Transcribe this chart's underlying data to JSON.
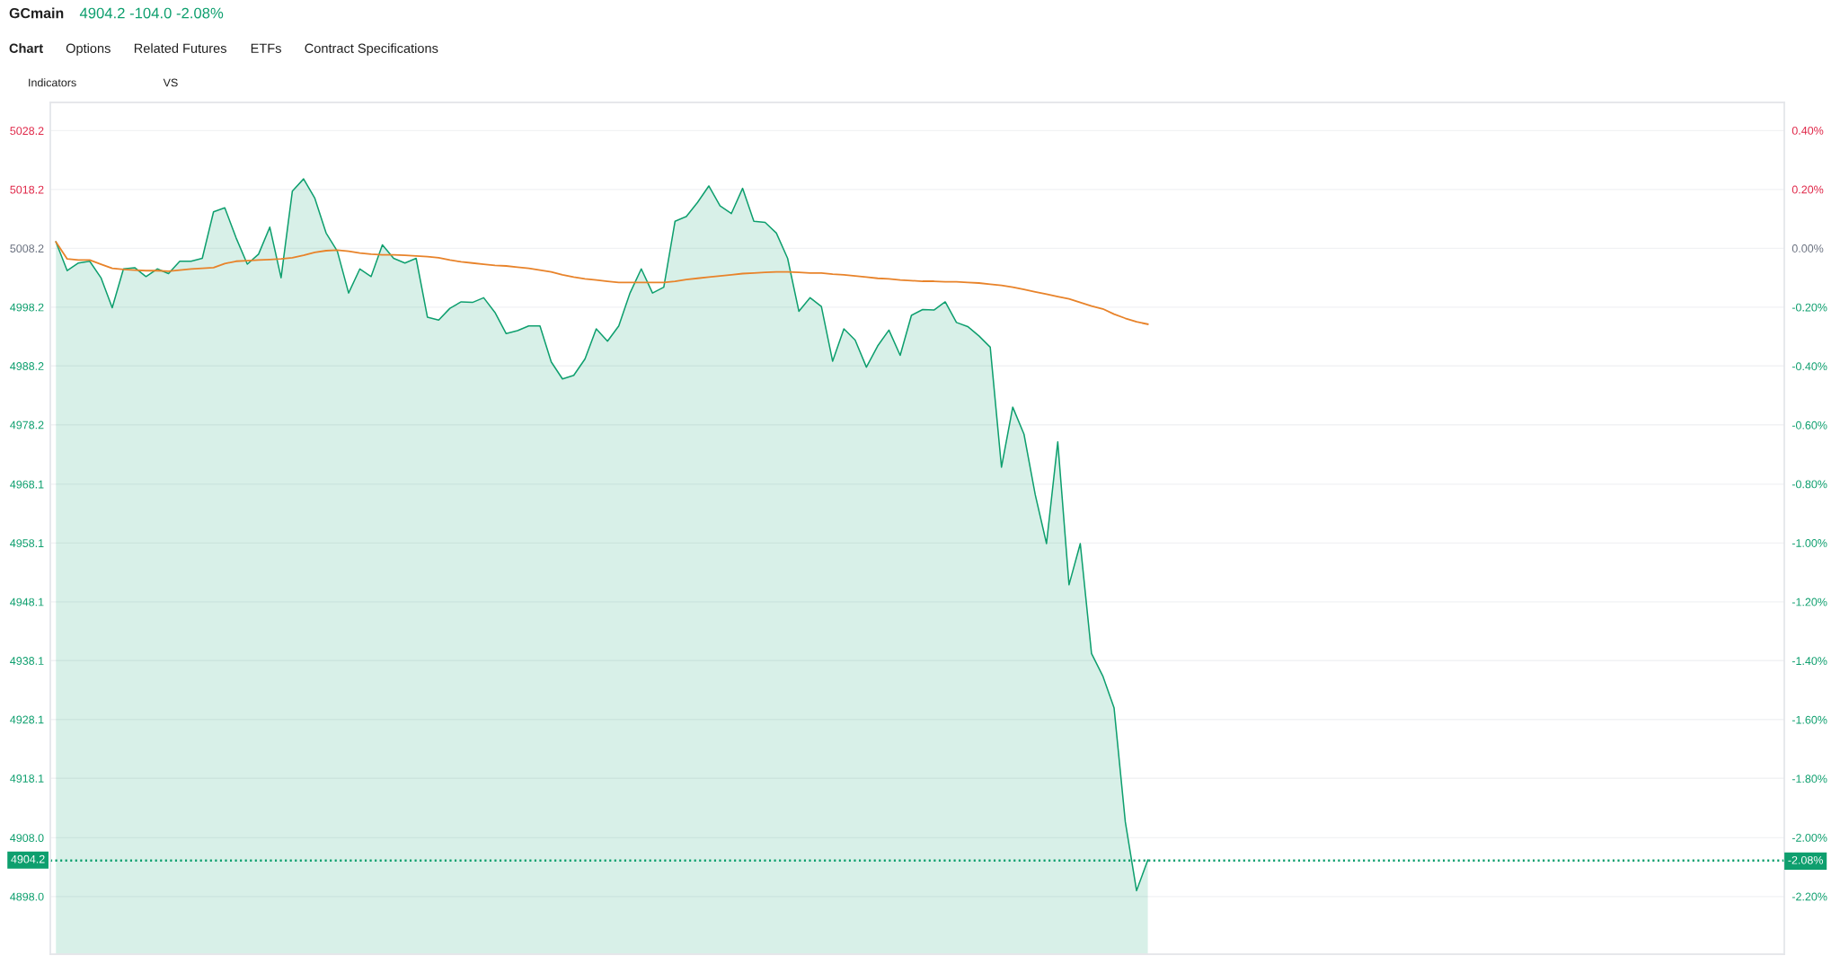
{
  "chart_data": {
    "type": "area",
    "title": "GCmain",
    "subtitle": "4904.2 -104.0 -2.08%",
    "annotations": [
      "Chart",
      "Options",
      "Related Futures",
      "ETFs",
      "Contract Specifications",
      "Indicators",
      "VS"
    ],
    "categories": [
      null,
      null,
      null,
      null,
      null,
      null,
      null,
      null,
      null,
      null,
      null,
      null,
      null,
      null,
      null,
      null,
      null,
      null,
      null,
      null,
      null,
      null,
      null,
      null,
      null,
      null,
      null,
      null,
      null,
      null,
      null,
      null,
      null,
      null,
      null,
      null,
      null,
      null,
      null,
      null,
      null,
      null,
      null,
      null,
      null,
      null,
      null,
      null,
      null,
      null,
      null,
      null,
      null,
      null,
      null,
      null,
      null,
      null,
      null,
      null,
      null,
      null,
      null,
      null,
      null,
      null,
      null,
      null,
      null,
      null,
      null,
      null,
      null,
      null,
      null,
      null,
      null,
      null,
      null,
      null,
      null,
      null,
      null,
      null,
      null,
      null,
      null,
      null,
      null,
      null,
      null,
      null,
      null,
      null,
      null,
      null,
      null,
      null
    ],
    "series": [
      {
        "color": "#0e9f6e",
        "values": [
          5009.3,
          5004.4,
          5005.7,
          5006.0,
          5003.2,
          4998.1,
          5004.7,
          5004.9,
          5003.4,
          5004.7,
          5003.9,
          5006.0,
          5006.0,
          5006.5,
          5014.4,
          5015.1,
          5010.0,
          5005.5,
          5007.2,
          5011.8,
          5003.2,
          5017.9,
          5020.0,
          5016.7,
          5010.8,
          5007.7,
          5000.6,
          5004.7,
          5003.4,
          5008.8,
          5006.5,
          5005.7,
          5006.5,
          4996.5,
          4996.0,
          4998.0,
          4999.1,
          4999.0,
          4999.8,
          4997.3,
          4993.7,
          4994.2,
          4995.0,
          4995.0,
          4988.9,
          4986.0,
          4986.6,
          4989.4,
          4994.5,
          4992.4,
          4995.0,
          5000.6,
          5004.7,
          5000.6,
          5001.6,
          5012.8,
          5013.6,
          5016.0,
          5018.8,
          5015.4,
          5014.1,
          5018.4,
          5012.8,
          5012.6,
          5010.8,
          5006.5,
          4997.5,
          4999.8,
          4998.3,
          4989.0,
          4994.5,
          4992.6,
          4988.0,
          4991.6,
          4994.3,
          4990.0,
          4996.8,
          4997.8,
          4997.7,
          4999.1,
          4995.6,
          4994.9,
          4993.3,
          4991.4,
          4971.0,
          4981.2,
          4976.6,
          4966.3,
          4958.0,
          4975.3,
          4951.0,
          4958.0,
          4939.3,
          4935.5,
          4930.1,
          4910.7,
          4899.0,
          4904.2
        ]
      },
      {
        "type": "line",
        "color": "#e8832a",
        "values": [
          5009.3,
          5006.4,
          5006.2,
          5006.2,
          5005.5,
          5004.8,
          5004.6,
          5004.5,
          5004.4,
          5004.4,
          5004.3,
          5004.5,
          5004.7,
          5004.8,
          5004.9,
          5005.6,
          5006.0,
          5006.1,
          5006.2,
          5006.3,
          5006.4,
          5006.6,
          5007.0,
          5007.5,
          5007.8,
          5007.9,
          5007.7,
          5007.4,
          5007.2,
          5007.1,
          5007.1,
          5007.0,
          5006.9,
          5006.8,
          5006.6,
          5006.2,
          5005.9,
          5005.7,
          5005.5,
          5005.3,
          5005.2,
          5005.0,
          5004.8,
          5004.5,
          5004.2,
          5003.7,
          5003.3,
          5003.0,
          5002.8,
          5002.6,
          5002.4,
          5002.4,
          5002.4,
          5002.4,
          5002.4,
          5002.6,
          5002.9,
          5003.1,
          5003.3,
          5003.5,
          5003.7,
          5003.9,
          5004.0,
          5004.1,
          5004.2,
          5004.2,
          5004.1,
          5004.0,
          5004.0,
          5003.8,
          5003.7,
          5003.5,
          5003.3,
          5003.1,
          5003.0,
          5002.8,
          5002.7,
          5002.6,
          5002.6,
          5002.5,
          5002.5,
          5002.4,
          5002.3,
          5002.1,
          5001.9,
          5001.6,
          5001.2,
          5000.8,
          5000.4,
          5000.0,
          4999.6,
          4999.0,
          4998.4,
          4997.9,
          4997.0,
          4996.3,
          4995.7,
          4995.3
        ]
      }
    ],
    "ylim": [
      4888.2,
      5033.0
    ],
    "yticks": [
      5028.2,
      5018.2,
      5008.2,
      4998.2,
      4988.2,
      4978.2,
      4968.1,
      4958.1,
      4948.1,
      4938.1,
      4928.1,
      4918.1,
      {
        "value": 4908.0,
        "label": "4908.0"
      },
      {
        "value": 4898.0,
        "label": "4898.0"
      }
    ],
    "y2lim": [
      -2.396,
      0.495
    ],
    "y2ticks": [
      {
        "value": 0.4,
        "label": "0.40%"
      },
      {
        "value": 0.2,
        "label": "0.20%"
      },
      {
        "value": 0,
        "label": "0.00%"
      },
      {
        "value": -0.2,
        "label": "-0.20%"
      },
      {
        "value": -0.4,
        "label": "-0.40%"
      },
      {
        "value": -0.6,
        "label": "-0.60%"
      },
      {
        "value": -0.8,
        "label": "-0.80%"
      },
      {
        "value": -1.0,
        "label": "-1.00%"
      },
      {
        "value": -1.2,
        "label": "-1.20%"
      },
      {
        "value": -1.4,
        "label": "-1.40%"
      },
      {
        "value": -1.6,
        "label": "-1.60%"
      },
      {
        "value": -1.8,
        "label": "-1.80%"
      },
      {
        "value": -2.0,
        "label": "-2.00%"
      },
      {
        "value": -2.2,
        "label": "-2.20%"
      }
    ],
    "ref_lines": [
      {
        "axis": "y",
        "value": 4904.2,
        "label": "4904.2",
        "color": "#0e9f6e",
        "line_style": "dotted"
      },
      {
        "axis": "y2",
        "value": -2.08,
        "label": "-2.08%",
        "color": "#0e9f6e",
        "line_style": "dotted"
      }
    ],
    "grid": true,
    "tick_labels": "y"
  }
}
